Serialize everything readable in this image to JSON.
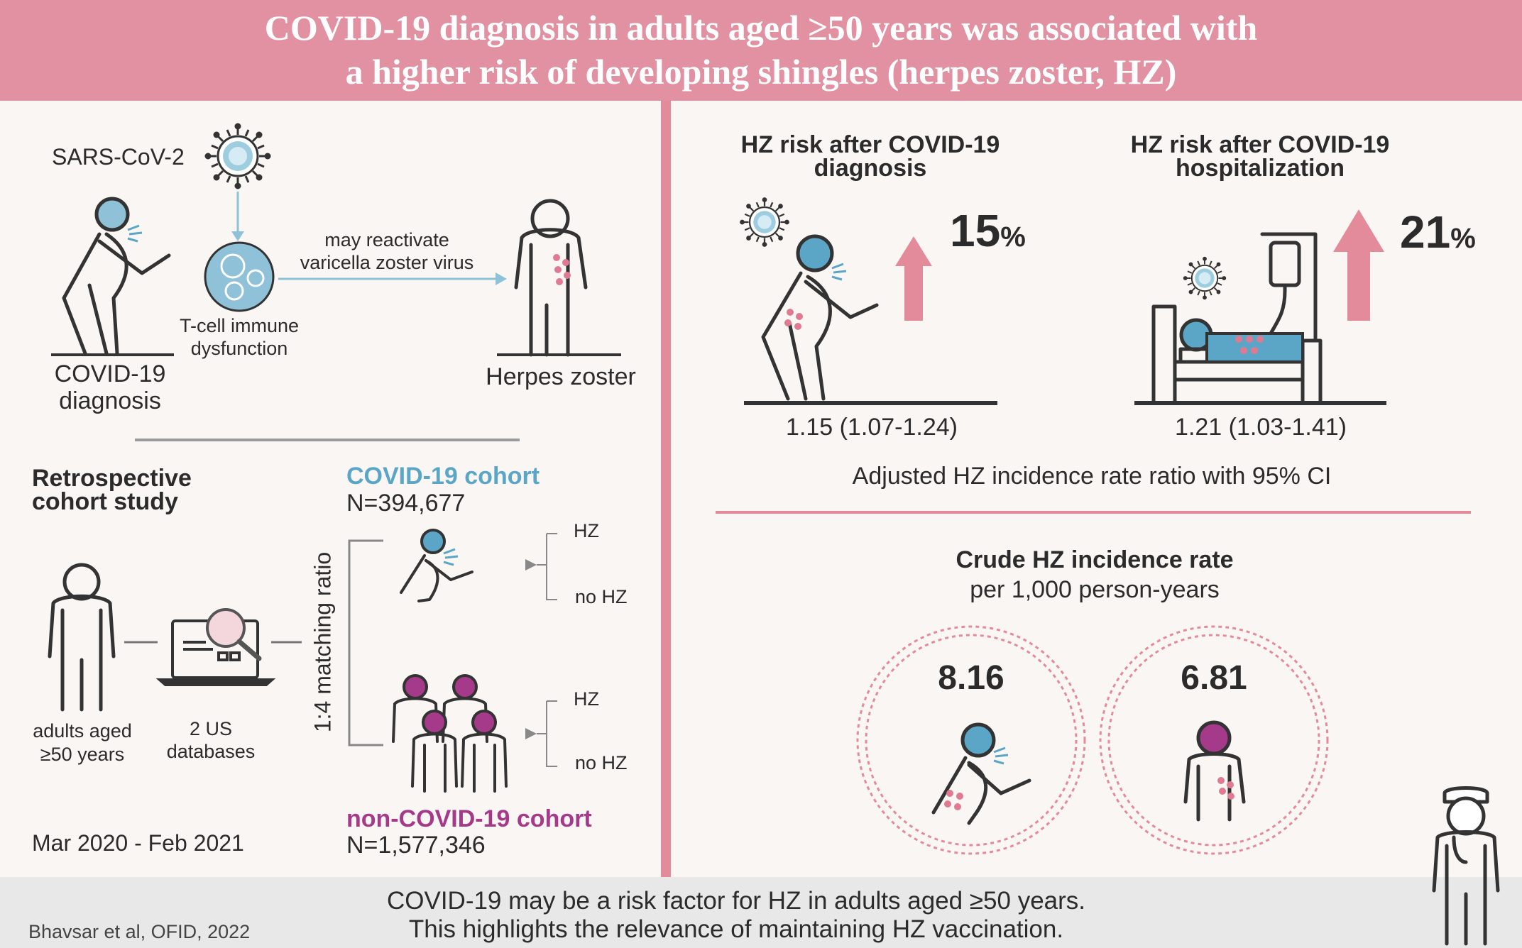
{
  "header": {
    "line1": "COVID-19 diagnosis in adults aged ≥50 years was associated with",
    "line2": "a higher risk of developing shingles (herpes zoster, HZ)"
  },
  "mechanism": {
    "virus_label": "SARS-CoV-2",
    "covid_label_1": "COVID-19",
    "covid_label_2": "diagnosis",
    "tcell_label_1": "T-cell immune",
    "tcell_label_2": "dysfunction",
    "reactivate_1": "may reactivate",
    "reactivate_2": "varicella zoster virus",
    "hz_label": "Herpes zoster"
  },
  "study": {
    "title_1": "Retrospective",
    "title_2": "cohort study",
    "adults_1": "adults aged",
    "adults_2": "≥50 years",
    "db_1": "2 US",
    "db_2": "databases",
    "matching": "1:4 matching ratio",
    "period": "Mar 2020 - Feb 2021",
    "covid_cohort_name": "COVID-19 cohort",
    "covid_cohort_n": "N=394,677",
    "noncovid_cohort_name": "non-COVID-19 cohort",
    "noncovid_cohort_n": "N=1,577,346",
    "hz": "HZ",
    "no_hz": "no HZ"
  },
  "risk": {
    "diag_title_1": "HZ risk after COVID-19",
    "diag_title_2": "diagnosis",
    "diag_pct": "15",
    "diag_ci": "1.15 (1.07-1.24)",
    "hosp_title_1": "HZ risk after COVID-19",
    "hosp_title_2": "hospitalization",
    "hosp_pct": "21",
    "hosp_ci": "1.21 (1.03-1.41)",
    "pct_sign": "%",
    "ci_caption": "Adjusted HZ incidence rate ratio with 95% CI"
  },
  "crude": {
    "title": "Crude HZ incidence rate",
    "subtitle": "per 1,000 person-years",
    "covid_value": "8.16",
    "noncovid_value": "6.81"
  },
  "footer": {
    "citation": "Bhavsar et al, OFID, 2022",
    "conclusion_1": "COVID-19 may be a risk factor for HZ in adults aged ≥50 years.",
    "conclusion_2": "This highlights the relevance of maintaining HZ vaccination."
  },
  "colors": {
    "header_pink": "#e191a1",
    "covid_blue": "#5ba6c6",
    "noncovid_purple": "#a43a89",
    "rash_pink": "#e07a92"
  }
}
